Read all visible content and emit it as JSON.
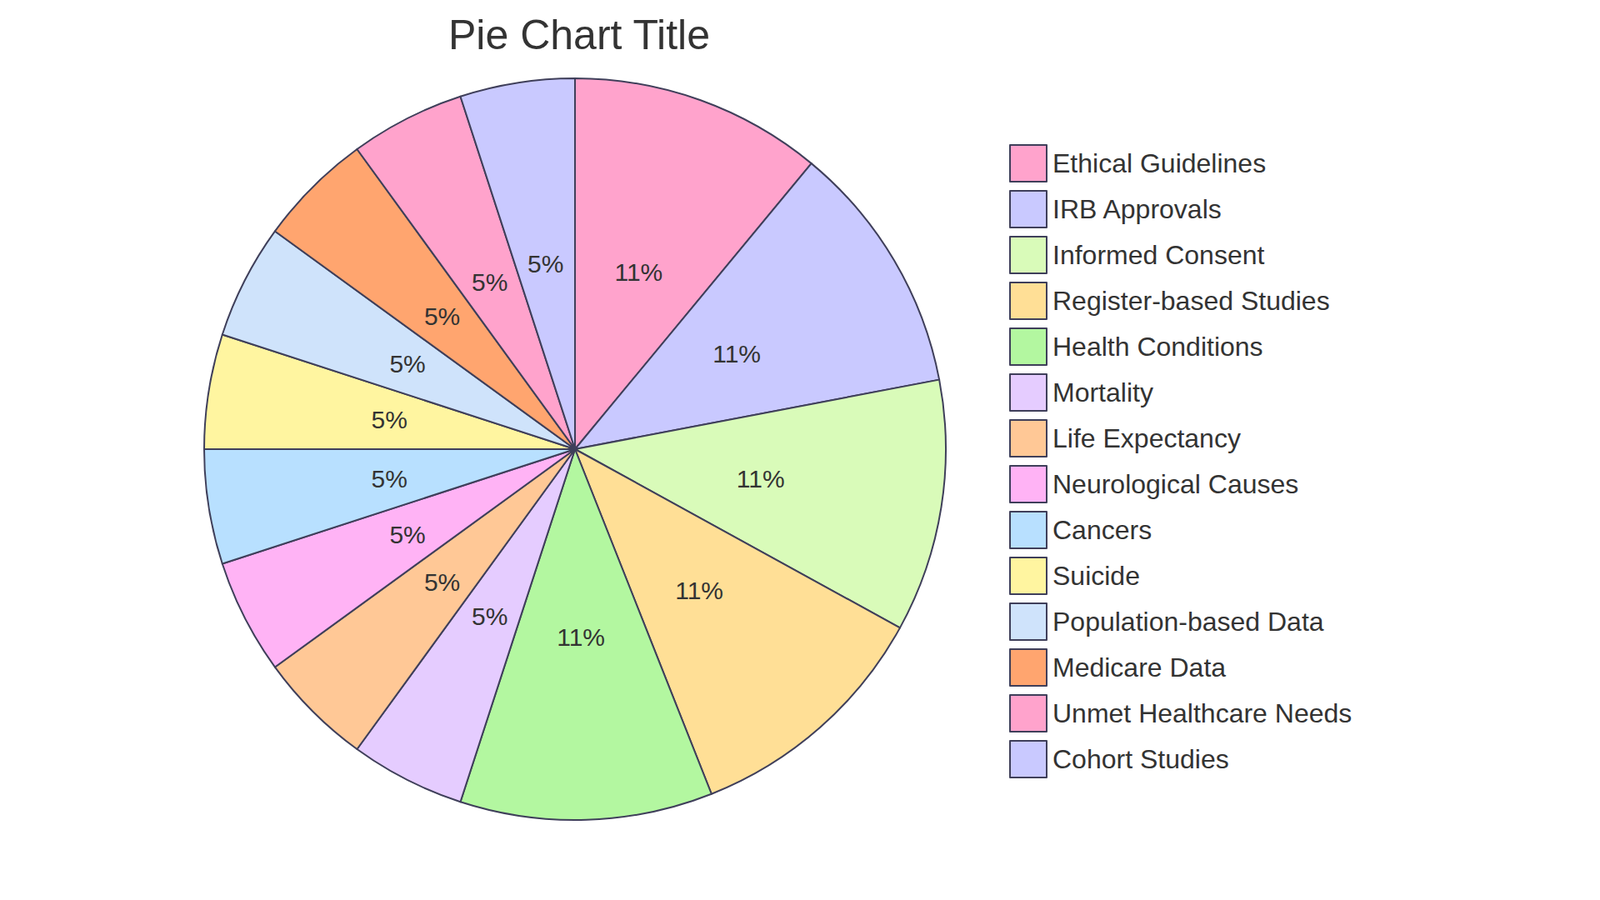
{
  "chart_data": {
    "type": "pie",
    "title": "Pie Chart Title",
    "categories": [
      "Ethical Guidelines",
      "IRB Approvals",
      "Informed Consent",
      "Register-based Studies",
      "Health Conditions",
      "Mortality",
      "Life Expectancy",
      "Neurological Causes",
      "Cancers",
      "Suicide",
      "Population-based Data",
      "Medicare Data",
      "Unmet Healthcare Needs",
      "Cohort Studies"
    ],
    "values": [
      11,
      11,
      11,
      11,
      11,
      5,
      5,
      5,
      5,
      5,
      5,
      5,
      5,
      5
    ],
    "value_labels": [
      "11%",
      "11%",
      "11%",
      "11%",
      "11%",
      "5%",
      "5%",
      "5%",
      "5%",
      "5%",
      "5%",
      "5%",
      "5%",
      "5%"
    ],
    "colors": [
      "#ffa3cc",
      "#c9c9ff",
      "#d9fbb9",
      "#ffdf96",
      "#b3f7a0",
      "#e5ccff",
      "#ffc896",
      "#ffb3f5",
      "#b8e0ff",
      "#fff5a0",
      "#cfe3fb",
      "#ffa56f",
      "#ffa3cc",
      "#c9c9ff"
    ],
    "data_labels": true,
    "legend": "right"
  }
}
